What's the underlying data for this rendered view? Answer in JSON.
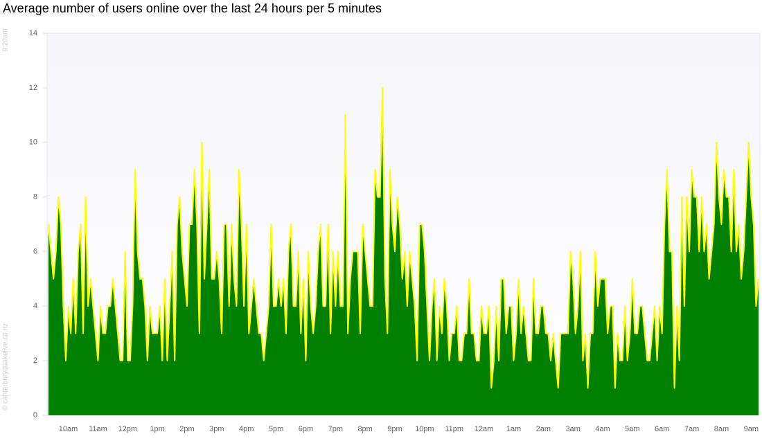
{
  "chart_data": {
    "type": "area",
    "title": "Average number of users online over the last 24 hours per 5 minutes",
    "start_label": "9:20am",
    "credit": "© canterburyquakelive.co.nz",
    "color": "#008000",
    "line_color": "#ffff00",
    "ylim": [
      0,
      14
    ],
    "yticks": [
      0,
      2,
      4,
      6,
      8,
      10,
      12,
      14
    ],
    "categories": [
      null,
      null,
      null,
      null,
      null,
      null,
      null,
      null,
      "10am",
      null,
      null,
      null,
      null,
      null,
      null,
      null,
      null,
      null,
      null,
      null,
      "11am",
      null,
      null,
      null,
      null,
      null,
      null,
      null,
      null,
      null,
      null,
      null,
      "12pm",
      null,
      null,
      null,
      null,
      null,
      null,
      null,
      null,
      null,
      null,
      null,
      "1pm",
      null,
      null,
      null,
      null,
      null,
      null,
      null,
      null,
      null,
      null,
      null,
      "2pm",
      null,
      null,
      null,
      null,
      null,
      null,
      null,
      null,
      null,
      null,
      null,
      "3pm",
      null,
      null,
      null,
      null,
      null,
      null,
      null,
      null,
      null,
      null,
      null,
      "4pm",
      null,
      null,
      null,
      null,
      null,
      null,
      null,
      null,
      null,
      null,
      null,
      "5pm",
      null,
      null,
      null,
      null,
      null,
      null,
      null,
      null,
      null,
      null,
      null,
      "6pm",
      null,
      null,
      null,
      null,
      null,
      null,
      null,
      null,
      null,
      null,
      null,
      "7pm",
      null,
      null,
      null,
      null,
      null,
      null,
      null,
      null,
      null,
      null,
      null,
      "8pm",
      null,
      null,
      null,
      null,
      null,
      null,
      null,
      null,
      null,
      null,
      null,
      "9pm",
      null,
      null,
      null,
      null,
      null,
      null,
      null,
      null,
      null,
      null,
      null,
      "10pm",
      null,
      null,
      null,
      null,
      null,
      null,
      null,
      null,
      null,
      null,
      null,
      "11pm",
      null,
      null,
      null,
      null,
      null,
      null,
      null,
      null,
      null,
      null,
      null,
      "12am",
      null,
      null,
      null,
      null,
      null,
      null,
      null,
      null,
      null,
      null,
      null,
      "1am",
      null,
      null,
      null,
      null,
      null,
      null,
      null,
      null,
      null,
      null,
      null,
      "2am",
      null,
      null,
      null,
      null,
      null,
      null,
      null,
      null,
      null,
      null,
      null,
      "3am",
      null,
      null,
      null,
      null,
      null,
      null,
      null,
      null,
      null,
      null,
      null,
      "4am",
      null,
      null,
      null,
      null,
      null,
      null,
      null,
      null,
      null,
      null,
      null,
      "5am",
      null,
      null,
      null,
      null,
      null,
      null,
      null,
      null,
      null,
      null,
      null,
      "6am",
      null,
      null,
      null,
      null,
      null,
      null,
      null,
      null,
      null,
      null,
      null,
      "7am",
      null,
      null,
      null,
      null,
      null,
      null,
      null,
      null,
      null,
      null,
      null,
      "8am",
      null,
      null,
      null,
      null,
      null,
      null,
      null,
      null,
      null,
      null,
      null,
      "9am",
      null,
      null,
      null
    ],
    "values": [
      7,
      6,
      5,
      6,
      8,
      7,
      4,
      2,
      4,
      3,
      5,
      3,
      6,
      7,
      3,
      8,
      4,
      5,
      4,
      3,
      2,
      4,
      3,
      3,
      4,
      4,
      5,
      4,
      3,
      2,
      2,
      6,
      2,
      2,
      4,
      9,
      6,
      5,
      5,
      4,
      2,
      4,
      3,
      3,
      3,
      4,
      2,
      5,
      2,
      4,
      6,
      2,
      7,
      8,
      6,
      5,
      4,
      7,
      7,
      9,
      7,
      3,
      10,
      5,
      7,
      9,
      5,
      5,
      6,
      5,
      3,
      7,
      7,
      4,
      7,
      5,
      4,
      9,
      7,
      4,
      7,
      3,
      4,
      5,
      4,
      3,
      3,
      2,
      3,
      4,
      7,
      4,
      4,
      5,
      4,
      5,
      3,
      6,
      7,
      4,
      4,
      6,
      3,
      5,
      2,
      6,
      4,
      3,
      4,
      6,
      7,
      4,
      4,
      7,
      3,
      6,
      4,
      6,
      4,
      4,
      11,
      3,
      5,
      6,
      6,
      6,
      3,
      7,
      6,
      5,
      4,
      4,
      9,
      8,
      8,
      12,
      5,
      3,
      9,
      7,
      6,
      8,
      7,
      5,
      6,
      4,
      6,
      5,
      4,
      2,
      7,
      7,
      6,
      4,
      2,
      4,
      5,
      2,
      4,
      3,
      5,
      4,
      2,
      3,
      3,
      4,
      2,
      2,
      3,
      3,
      5,
      3,
      3,
      2,
      2,
      4,
      3,
      3,
      4,
      1,
      2,
      4,
      2,
      5,
      5,
      3,
      4,
      4,
      2,
      3,
      5,
      3,
      4,
      3,
      2,
      2,
      5,
      3,
      3,
      4,
      4,
      3,
      3,
      2,
      3,
      2,
      1,
      3,
      3,
      3,
      3,
      6,
      5,
      3,
      4,
      6,
      2,
      3,
      1,
      3,
      3,
      6,
      4,
      5,
      5,
      5,
      3,
      4,
      4,
      1,
      3,
      2,
      2,
      4,
      2,
      3,
      5,
      3,
      3,
      4,
      4,
      3,
      2,
      2,
      3,
      4,
      2,
      4,
      3,
      7,
      9,
      6,
      6,
      1,
      4,
      2,
      8,
      4,
      8,
      6,
      9,
      8,
      8,
      6,
      8,
      6,
      7,
      5,
      6,
      7,
      10,
      8,
      7,
      9,
      8,
      8,
      6,
      9,
      6,
      7,
      5,
      6,
      8,
      10,
      8,
      7,
      4,
      5
    ]
  }
}
